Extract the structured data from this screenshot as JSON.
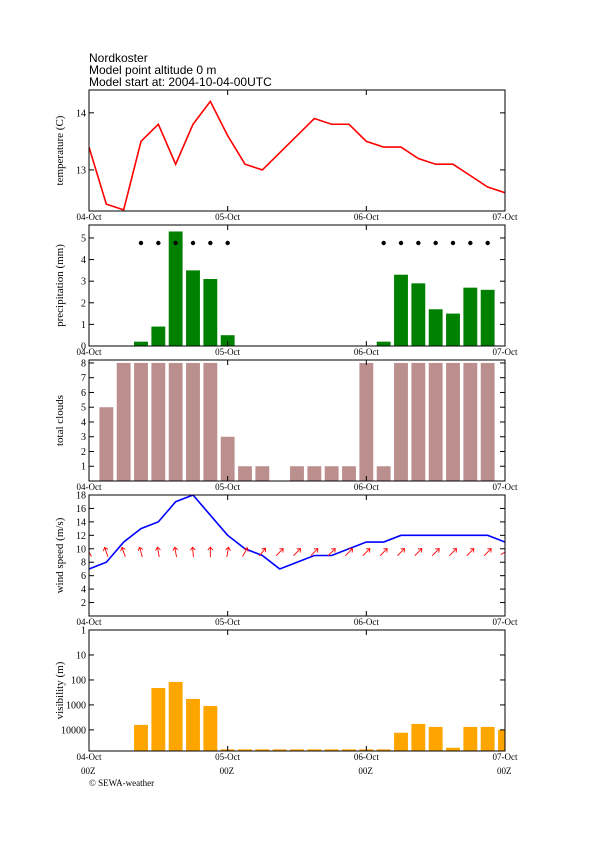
{
  "header": {
    "location": "Nordkoster",
    "altitude": "Model point altitude  0 m",
    "model_start": "Model start at: 2004-10-04-00UTC"
  },
  "chart_data": [
    {
      "type": "line",
      "ylabel": "temperature (C)",
      "color": "#ff0000",
      "x": [
        0,
        3,
        6,
        9,
        12,
        15,
        18,
        21,
        24,
        27,
        30,
        33,
        36,
        39,
        42,
        45,
        48,
        51,
        54,
        57,
        60,
        63,
        66,
        69,
        72
      ],
      "values": [
        13.4,
        12.4,
        12.3,
        13.5,
        13.8,
        13.1,
        13.8,
        14.2,
        13.6,
        13.1,
        13.0,
        13.3,
        13.6,
        13.9,
        13.8,
        13.8,
        13.5,
        13.4,
        13.4,
        13.2,
        13.1,
        13.1,
        12.9,
        12.7,
        12.6
      ],
      "xlim": [
        0,
        72
      ],
      "xticks": [
        {
          "value": 0,
          "label": "04-Oct"
        },
        {
          "value": 24,
          "label": "05-Oct"
        },
        {
          "value": 48,
          "label": "06-Oct"
        },
        {
          "value": 72,
          "label": "07-Oct"
        }
      ],
      "ylim": [
        12.28,
        14.4
      ],
      "yticks": [
        13,
        14
      ]
    },
    {
      "type": "bar",
      "ylabel": "precipitation (mm)",
      "color": "#008000",
      "symbol_color": "#000000",
      "x": [
        0,
        3,
        6,
        9,
        12,
        15,
        18,
        21,
        24,
        27,
        30,
        33,
        36,
        39,
        42,
        45,
        48,
        51,
        54,
        57,
        60,
        63,
        66,
        69,
        72
      ],
      "values": [
        0,
        0,
        0,
        0.2,
        0.9,
        5.3,
        3.5,
        3.1,
        0.5,
        0,
        0,
        0,
        0,
        0,
        0,
        0,
        0,
        0.2,
        3.3,
        2.9,
        1.7,
        1.5,
        2.7,
        2.6,
        0
      ],
      "xlim": [
        0,
        72
      ],
      "xticks": [
        {
          "value": 0,
          "label": "04-Oct"
        },
        {
          "value": 24,
          "label": "05-Oct"
        },
        {
          "value": 48,
          "label": "06-Oct"
        },
        {
          "value": 72,
          "label": "07-Oct"
        }
      ],
      "ylim": [
        0,
        5.6
      ],
      "yticks": [
        0,
        1,
        2,
        3,
        4,
        5
      ]
    },
    {
      "type": "bar",
      "ylabel": "total clouds",
      "color": "#bc8f8f",
      "x": [
        0,
        3,
        6,
        9,
        12,
        15,
        18,
        21,
        24,
        27,
        30,
        33,
        36,
        39,
        42,
        45,
        48,
        51,
        54,
        57,
        60,
        63,
        66,
        69,
        72
      ],
      "values": [
        0,
        5,
        8,
        8,
        8,
        8,
        8,
        8,
        3,
        1,
        1,
        0,
        1,
        1,
        1,
        1,
        8,
        1,
        8,
        8,
        8,
        8,
        8,
        8,
        0
      ],
      "xlim": [
        0,
        72
      ],
      "xticks": [
        {
          "value": 0,
          "label": "04-Oct"
        },
        {
          "value": 24,
          "label": "05-Oct"
        },
        {
          "value": 48,
          "label": "06-Oct"
        },
        {
          "value": 72,
          "label": "07-Oct"
        }
      ],
      "ylim": [
        0,
        8.2
      ],
      "yticks": [
        1,
        2,
        3,
        4,
        5,
        6,
        7,
        8
      ]
    },
    {
      "type": "line",
      "ylabel": "wind speed (m/s)",
      "color": "#0000ff",
      "arrow_color": "#ff0000",
      "x": [
        0,
        3,
        6,
        9,
        12,
        15,
        18,
        21,
        24,
        27,
        30,
        33,
        36,
        39,
        42,
        45,
        48,
        51,
        54,
        57,
        60,
        63,
        66,
        69,
        72
      ],
      "values": [
        7,
        8,
        11,
        13,
        14,
        17,
        18,
        15,
        12,
        10,
        9,
        7,
        8,
        9,
        9,
        10,
        11,
        11,
        12,
        12,
        12,
        12,
        12,
        12,
        11
      ],
      "wind_direction": [
        330,
        340,
        340,
        345,
        350,
        350,
        355,
        0,
        10,
        30,
        40,
        45,
        45,
        45,
        45,
        45,
        45,
        45,
        45,
        45,
        45,
        45,
        45,
        45,
        60
      ],
      "xlim": [
        0,
        72
      ],
      "xticks": [
        {
          "value": 0,
          "label": "04-Oct"
        },
        {
          "value": 24,
          "label": "05-Oct"
        },
        {
          "value": 48,
          "label": "06-Oct"
        },
        {
          "value": 72,
          "label": "07-Oct"
        }
      ],
      "ylim": [
        0,
        18
      ],
      "yticks": [
        2,
        4,
        6,
        8,
        10,
        12,
        14,
        16,
        18
      ]
    },
    {
      "type": "bar",
      "ylabel": "visibility (m)",
      "color": "#ffa500",
      "log_scale": true,
      "y_inverted": true,
      "x": [
        0,
        3,
        6,
        9,
        12,
        15,
        18,
        21,
        24,
        27,
        30,
        33,
        36,
        39,
        42,
        45,
        48,
        51,
        54,
        57,
        60,
        63,
        66,
        69,
        72
      ],
      "values": [
        70000,
        70000,
        70000,
        6300,
        210,
        120,
        575,
        1100,
        60000,
        60000,
        60000,
        60000,
        60000,
        60000,
        60000,
        60000,
        60000,
        60000,
        13000,
        5750,
        7600,
        52000,
        7600,
        7600,
        10000
      ],
      "xlim": [
        0,
        72
      ],
      "xticks": [
        {
          "value": 0,
          "label": "04-Oct"
        },
        {
          "value": 24,
          "label": "05-Oct"
        },
        {
          "value": 48,
          "label": "06-Oct"
        },
        {
          "value": 72,
          "label": "07-Oct"
        }
      ],
      "xtick_sublabels": [
        "00Z",
        "00Z",
        "00Z",
        "00Z"
      ],
      "ylim": [
        1,
        70000
      ],
      "yticks": [
        1,
        10,
        100,
        1000,
        10000
      ]
    }
  ],
  "footer": {
    "credit": "© SEWA-weather"
  }
}
